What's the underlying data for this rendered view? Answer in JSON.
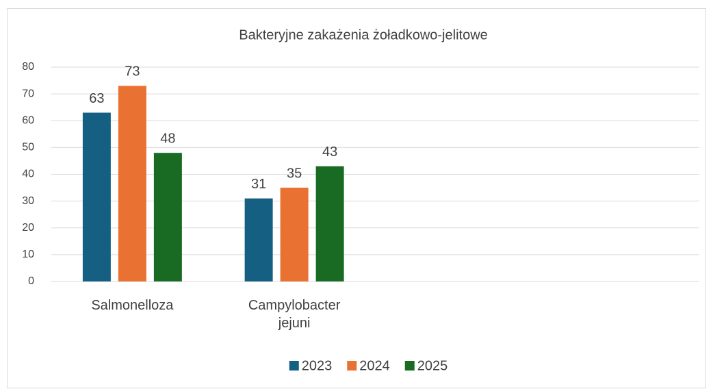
{
  "chart_data": {
    "type": "bar",
    "title": "Bakteryjne zakażenia żoładkowo-jelitowe",
    "categories": [
      "Salmonelloza",
      "Campylobacter jejuni",
      null,
      null
    ],
    "series": [
      {
        "name": "2023",
        "color": "#156082",
        "values": [
          63,
          31,
          null,
          null
        ]
      },
      {
        "name": "2024",
        "color": "#e97132",
        "values": [
          73,
          35,
          null,
          null
        ]
      },
      {
        "name": "2025",
        "color": "#196b24",
        "values": [
          48,
          43,
          null,
          null
        ]
      }
    ],
    "ylim": [
      0,
      80
    ],
    "yticks": [
      0,
      10,
      20,
      30,
      40,
      50,
      60,
      70,
      80
    ],
    "grid": true,
    "legend": "bottom",
    "data_labels": true
  }
}
